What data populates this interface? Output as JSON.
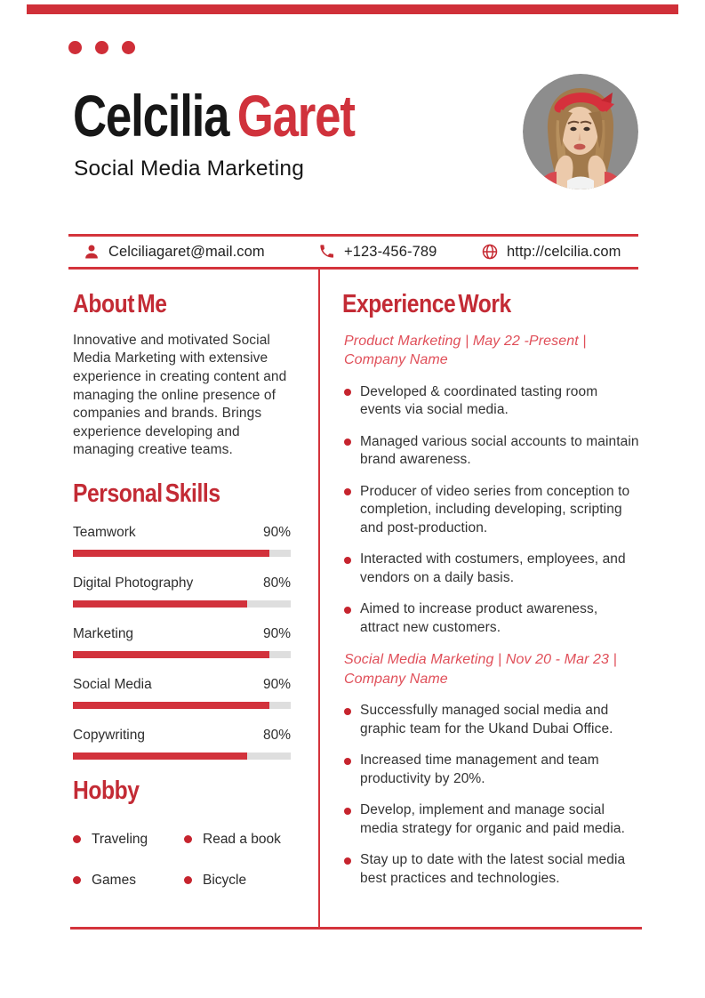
{
  "theme": {
    "accent_red": "#d2333d",
    "heading_red": "#c32b35",
    "italic_red": "#e04f59",
    "bar_track_gray": "#dedede",
    "text_dark": "#333333"
  },
  "header": {
    "first_name": "Celcilia ",
    "last_name": "Garet",
    "subtitle": "Social Media Marketing",
    "photo": "portrait of woman with red headband on gray background"
  },
  "contact": {
    "email": "Celciliagaret@mail.com",
    "phone": "+123-456-789",
    "website": "http://celcilia.com",
    "icons": [
      "person-icon",
      "phone-icon",
      "globe-icon"
    ]
  },
  "about": {
    "heading": "About Me",
    "text": "Innovative and motivated Social Media Marketing with extensive experience in creating content and managing the online presence of companies and brands. Brings experience developing and managing creative teams."
  },
  "skills": {
    "heading": "Personal Skills",
    "items": [
      {
        "label": "Teamwork",
        "percent": "90%",
        "value": 90
      },
      {
        "label": "Digital Photography",
        "percent": "80%",
        "value": 80
      },
      {
        "label": "Marketing",
        "percent": "90%",
        "value": 90
      },
      {
        "label": "Social Media",
        "percent": "90%",
        "value": 90
      },
      {
        "label": "Copywriting",
        "percent": "80%",
        "value": 80
      }
    ]
  },
  "hobby": {
    "heading": "Hobby",
    "items": [
      "Traveling",
      "Read a book",
      "Games",
      "Bicycle"
    ]
  },
  "experience": {
    "heading": "Experience Work",
    "jobs": [
      {
        "title": "Product Marketing | May 22 -Present |\nCompany Name",
        "bullets": [
          "Developed & coordinated tasting room events via social media.",
          "Managed various social accounts to maintain brand awareness.",
          "Producer of video series from conception to completion, including developing, scripting and post-production.",
          "Interacted with costumers, employees, and vendors on a daily basis.",
          "Aimed to increase product awareness, attract new customers."
        ]
      },
      {
        "title": "Social Media Marketing | Nov 20 - Mar 23 |\nCompany Name",
        "bullets": [
          "Successfully managed social media and graphic team for the Ukand Dubai Office.",
          "Increased time management and team productivity by 20%.",
          "Develop, implement and manage social media strategy for organic and paid media.",
          "Stay up to date with the latest social media best practices and technologies."
        ]
      }
    ]
  }
}
